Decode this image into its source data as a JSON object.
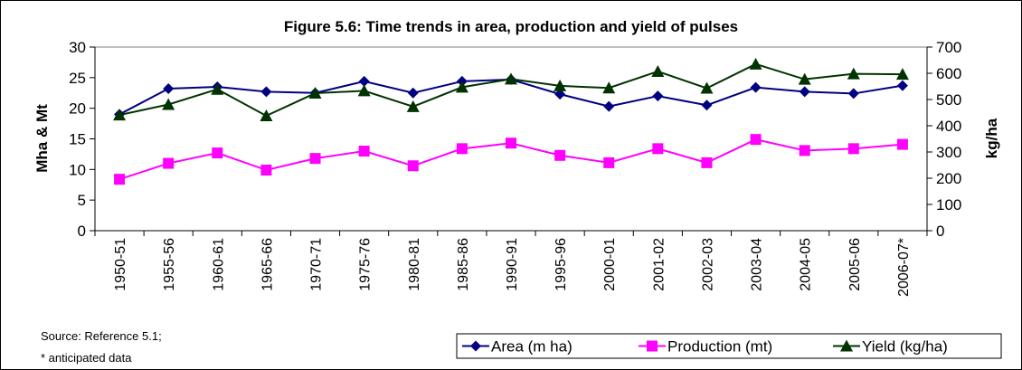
{
  "chart_data": {
    "type": "line",
    "title": "Figure 5.6: Time trends in area, production and yield of pulses",
    "y_label": "Mha & Mt",
    "y2_label": "kg/ha",
    "categories": [
      "1950-51",
      "1955-56",
      "1960-61",
      "1965-66",
      "1970-71",
      "1975-76",
      "1980-81",
      "1985-86",
      "1990-91",
      "1995-96",
      "2000-01",
      "2001-02",
      "2002-03",
      "2003-04",
      "2004-05",
      "2005-06",
      "2006-07*"
    ],
    "series": [
      {
        "name": "Area (m ha)",
        "color": "#000080",
        "marker": "diamond",
        "values": [
          19.0,
          23.2,
          23.5,
          22.7,
          22.5,
          24.4,
          22.5,
          24.4,
          24.7,
          22.3,
          20.3,
          22.0,
          20.5,
          23.4,
          22.7,
          22.4,
          23.7
        ]
      },
      {
        "name": "Production (mt)",
        "color": "#ff00ff",
        "marker": "square",
        "values": [
          8.4,
          11.0,
          12.7,
          9.9,
          11.8,
          13.0,
          10.6,
          13.4,
          14.3,
          12.3,
          11.1,
          13.4,
          11.1,
          14.9,
          13.1,
          13.4,
          14.1
        ]
      },
      {
        "name": "Yield (kg/ha)",
        "color": "#003300",
        "marker": "triangle",
        "axis": "y2",
        "values": [
          441,
          481,
          539,
          438,
          524,
          533,
          473,
          547,
          578,
          552,
          544,
          607,
          543,
          635,
          577,
          598,
          596
        ]
      }
    ],
    "ylim": [
      0,
      30
    ],
    "yticks": [
      0,
      5,
      10,
      15,
      20,
      25,
      30
    ],
    "y2lim": [
      0,
      700
    ],
    "y2ticks": [
      0,
      100,
      200,
      300,
      400,
      500,
      600,
      700
    ],
    "legend": "bottom-right",
    "notes": [
      "Source: Reference 5.1;",
      "* anticipated data"
    ]
  }
}
